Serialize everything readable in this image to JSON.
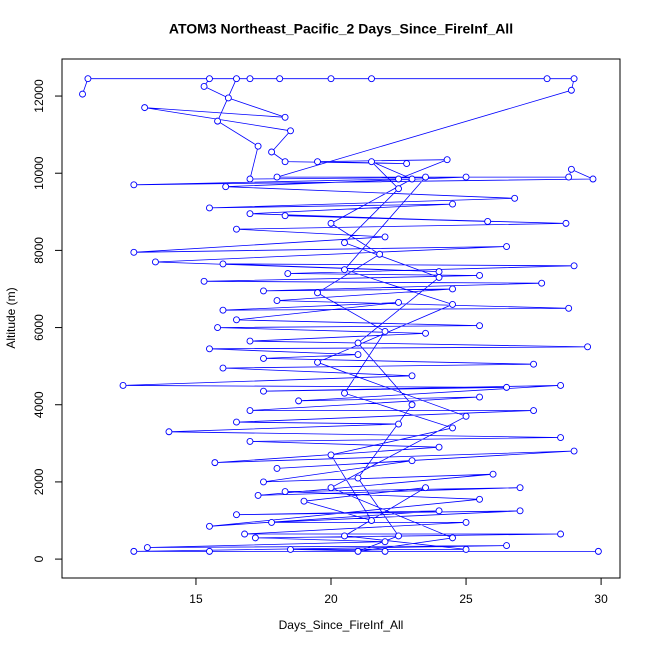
{
  "chart_data": {
    "type": "line",
    "title": "ATOM3 Northeast_Pacific_2 Days_Since_FireInf_All",
    "x_label": "Days_Since_FireInf_All",
    "y_label": "Altitude (m)",
    "color": "#0000ff",
    "markers": true,
    "xlim": [
      10.04,
      30.7
    ],
    "xticks": [
      15,
      20,
      25,
      30
    ],
    "ylim": [
      -490,
      12960
    ],
    "yticks": [
      0,
      2000,
      4000,
      6000,
      8000,
      10000,
      12000
    ],
    "x": [
      10.8,
      11.0,
      28.0,
      29.0,
      28.9,
      18.0,
      28.8,
      28.9,
      29.7,
      12.7,
      22.5,
      24.3,
      19.5,
      22.8,
      18.3,
      17.8,
      18.5,
      13.1,
      18.3,
      16.2,
      15.3,
      15.5,
      17.0,
      20.0,
      21.5,
      18.1,
      16.5,
      15.8,
      17.3,
      17.0,
      25.0,
      16.1,
      26.8,
      15.5,
      24.5,
      17.0,
      25.8,
      18.3,
      28.7,
      16.5,
      22.0,
      12.7,
      26.5,
      13.5,
      24.0,
      16.0,
      29.0,
      18.4,
      25.5,
      15.3,
      27.8,
      17.5,
      24.5,
      18.0,
      28.8,
      16.0,
      22.5,
      16.5,
      25.5,
      15.8,
      23.5,
      17.0,
      29.5,
      15.5,
      21.0,
      17.5,
      27.5,
      16.0,
      23.0,
      12.3,
      26.5,
      17.5,
      28.5,
      18.8,
      25.5,
      17.0,
      27.5,
      16.5,
      22.5,
      14.0,
      28.5,
      17.0,
      24.0,
      15.7,
      29.0,
      18.0,
      23.0,
      17.5,
      26.0,
      17.3,
      27.0,
      18.3,
      25.5,
      15.5,
      24.0,
      16.5,
      27.0,
      17.8,
      25.0,
      16.8,
      28.5,
      17.2,
      22.0,
      13.2,
      26.5,
      12.7,
      29.9,
      15.5,
      22.0,
      18.5,
      25.0,
      20.5,
      23.5,
      19.0,
      21.5,
      20.0,
      24.5,
      20.5,
      22.0,
      19.5,
      21.8,
      20.0,
      23.0,
      21.5,
      22.5,
      20.5,
      24.0,
      21.0,
      23.0,
      21.0,
      22.5,
      21.0,
      24.5,
      20.0,
      25.0,
      19.5,
      24.5,
      20.5,
      23.5
    ],
    "values": [
      12050,
      12450,
      12450,
      12450,
      12150,
      9900,
      9900,
      10100,
      9850,
      9700,
      9850,
      10350,
      10300,
      10250,
      10300,
      10550,
      11100,
      11700,
      11450,
      11950,
      12250,
      12450,
      12450,
      12450,
      12450,
      12450,
      12450,
      11350,
      10700,
      9850,
      9900,
      9650,
      9350,
      9100,
      9200,
      8950,
      8750,
      8900,
      8700,
      8550,
      8350,
      7950,
      8100,
      7700,
      7450,
      7650,
      7600,
      7400,
      7350,
      7200,
      7150,
      6950,
      7000,
      6700,
      6500,
      6450,
      6650,
      6200,
      6050,
      6000,
      5850,
      5650,
      5500,
      5450,
      5300,
      5200,
      5050,
      4950,
      4750,
      4500,
      4450,
      4350,
      4500,
      4100,
      4200,
      3850,
      3850,
      3550,
      3500,
      3300,
      3150,
      3050,
      2900,
      2500,
      2800,
      2350,
      2550,
      2000,
      2200,
      1650,
      1850,
      1750,
      1550,
      850,
      1250,
      1150,
      1250,
      950,
      950,
      650,
      650,
      550,
      450,
      300,
      350,
      200,
      200,
      200,
      200,
      250,
      250,
      600,
      1850,
      1500,
      1000,
      2700,
      3400,
      4300,
      5900,
      6900,
      7900,
      8700,
      9850,
      10300,
      9600,
      8200,
      7300,
      5600,
      4000,
      2100,
      600,
      200,
      550,
      1850,
      3700,
      5100,
      6600,
      7500,
      9900
    ]
  }
}
